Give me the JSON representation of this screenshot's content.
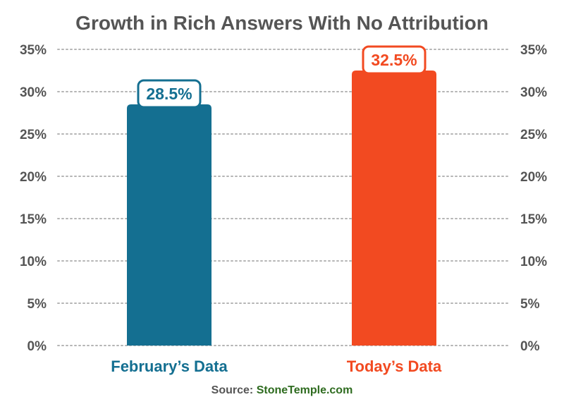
{
  "chart_data": {
    "type": "bar",
    "title": "Growth in Rich Answers With No Attribution",
    "categories": [
      "February’s Data",
      "Today’s Data"
    ],
    "values": [
      28.5,
      32.5
    ],
    "data_labels": [
      "28.5%",
      "32.5%"
    ],
    "bar_colors": [
      "#146f91",
      "#f24a21"
    ],
    "ylim": [
      0,
      35
    ],
    "yticks": [
      "0%",
      "5%",
      "10%",
      "15%",
      "20%",
      "25%",
      "30%",
      "35%"
    ],
    "ytick_values": [
      0,
      5,
      10,
      15,
      20,
      25,
      30,
      35
    ],
    "grid": true,
    "legend": "none",
    "source_prefix": "Source: ",
    "source_brand": "StoneTemple.com"
  },
  "colors": {
    "title": "#555555",
    "ticks": "#555555",
    "grid": "#b5b5b5",
    "source_brand": "#2e6b1f"
  }
}
